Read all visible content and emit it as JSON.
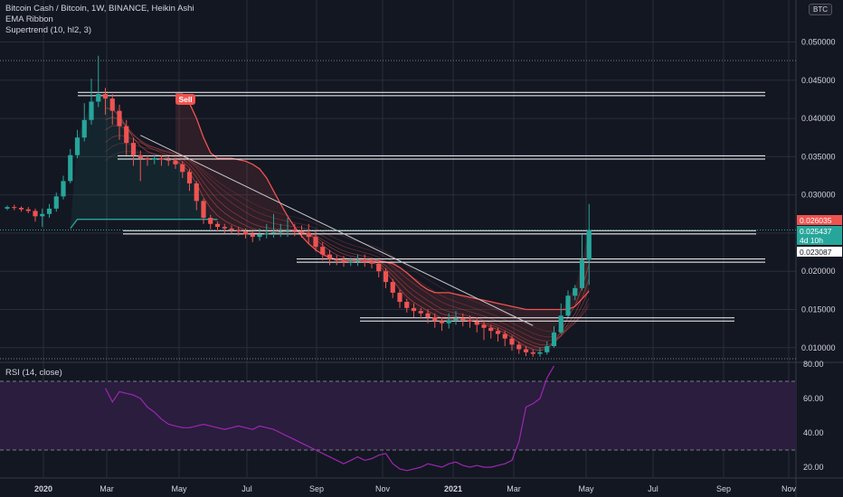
{
  "legend": {
    "title": "Bitcoin Cash / Bitcoin, 1W, BINANCE, Heikin Ashi",
    "indicator1": "EMA Ribbon",
    "indicator2": "Supertrend (10, hl2, 3)"
  },
  "currency_badge": "BTC",
  "rsi_label": "RSI (14, close)",
  "sell_label": "Sell",
  "colors": {
    "background": "#131722",
    "bull": "#26a69a",
    "bear": "#ef5350",
    "rsi_line": "#9c27b0",
    "rsi_band": "#2a1d3e",
    "axis_text": "#d1d4dc",
    "grid": "#2a2e39"
  },
  "chart_data": {
    "type": "candlestick",
    "price_axis": {
      "ticks": [
        0.01,
        0.015,
        0.02,
        0.025,
        0.03,
        0.035,
        0.04,
        0.045,
        0.05
      ],
      "tick_labels": [
        "0.010000",
        "0.015000",
        "0.020000",
        "0.025000",
        "0.030000",
        "0.035000",
        "0.040000",
        "0.045000",
        "0.050000"
      ],
      "range": [
        0.0082,
        0.0555
      ]
    },
    "time_axis": {
      "labels": [
        "2020",
        "Mar",
        "May",
        "Jul",
        "Sep",
        "Nov",
        "2021",
        "Mar",
        "May",
        "Jul",
        "Sep",
        "Nov"
      ]
    },
    "price_badges": [
      {
        "text": "0.026035",
        "value": 0.026035,
        "color": "#ef5350"
      },
      {
        "text": "0.025437",
        "value": 0.025437,
        "color": "#26a69a"
      },
      {
        "text": "4d 10h",
        "value": 0.024437,
        "color": "#26a69a"
      },
      {
        "text": "0.023087",
        "value": 0.023087,
        "color": "#ffffff"
      }
    ],
    "horizontal_levels": [
      0.0432,
      0.0349,
      0.0251,
      0.0214,
      0.0137
    ],
    "candles": [
      [
        0.0282,
        0.0284,
        0.0286,
        0.028
      ],
      [
        0.0284,
        0.0283,
        0.0287,
        0.028
      ],
      [
        0.0283,
        0.0281,
        0.0285,
        0.0278
      ],
      [
        0.0281,
        0.0279,
        0.0284,
        0.0276
      ],
      [
        0.0279,
        0.0272,
        0.0282,
        0.0265
      ],
      [
        0.0272,
        0.0275,
        0.0282,
        0.0258
      ],
      [
        0.0275,
        0.0282,
        0.0288,
        0.027
      ],
      [
        0.0282,
        0.0298,
        0.0303,
        0.0278
      ],
      [
        0.0298,
        0.0318,
        0.0325,
        0.0294
      ],
      [
        0.0318,
        0.0352,
        0.036,
        0.0315
      ],
      [
        0.0352,
        0.0375,
        0.0385,
        0.0348
      ],
      [
        0.0375,
        0.0398,
        0.042,
        0.037
      ],
      [
        0.0398,
        0.0422,
        0.0452,
        0.0392
      ],
      [
        0.0422,
        0.0432,
        0.0482,
        0.0415
      ],
      [
        0.0432,
        0.0426,
        0.044,
        0.0405
      ],
      [
        0.0426,
        0.041,
        0.0432,
        0.0392
      ],
      [
        0.041,
        0.039,
        0.0418,
        0.0372
      ],
      [
        0.039,
        0.0368,
        0.0398,
        0.0352
      ],
      [
        0.0368,
        0.0352,
        0.0375,
        0.0338
      ],
      [
        0.0352,
        0.0348,
        0.0358,
        0.0318
      ],
      [
        0.0348,
        0.0346,
        0.0352,
        0.0338
      ],
      [
        0.0346,
        0.0348,
        0.0352,
        0.034
      ],
      [
        0.0348,
        0.0346,
        0.0352,
        0.0338
      ],
      [
        0.0346,
        0.0345,
        0.035,
        0.0338
      ],
      [
        0.0345,
        0.034,
        0.0348,
        0.0334
      ],
      [
        0.034,
        0.033,
        0.0344,
        0.0322
      ],
      [
        0.033,
        0.0315,
        0.0334,
        0.0305
      ],
      [
        0.0315,
        0.0292,
        0.0318,
        0.028
      ],
      [
        0.0292,
        0.027,
        0.0295,
        0.0262
      ],
      [
        0.027,
        0.0262,
        0.0274,
        0.0255
      ],
      [
        0.0262,
        0.0258,
        0.0265,
        0.0252
      ],
      [
        0.0258,
        0.0256,
        0.0262,
        0.025
      ],
      [
        0.0256,
        0.0254,
        0.026,
        0.0249
      ],
      [
        0.0254,
        0.0252,
        0.0258,
        0.0247
      ],
      [
        0.0252,
        0.0248,
        0.0256,
        0.0243
      ],
      [
        0.0248,
        0.0245,
        0.0252,
        0.0238
      ],
      [
        0.0245,
        0.0248,
        0.0256,
        0.024
      ],
      [
        0.0248,
        0.025,
        0.0262,
        0.0243
      ],
      [
        0.025,
        0.0251,
        0.0275,
        0.0244
      ],
      [
        0.0251,
        0.0252,
        0.0262,
        0.0245
      ],
      [
        0.0252,
        0.0253,
        0.027,
        0.0245
      ],
      [
        0.0253,
        0.0252,
        0.0262,
        0.0246
      ],
      [
        0.0252,
        0.025,
        0.026,
        0.0244
      ],
      [
        0.025,
        0.0245,
        0.0262,
        0.0236
      ],
      [
        0.0245,
        0.0232,
        0.0252,
        0.0226
      ],
      [
        0.0232,
        0.0222,
        0.0238,
        0.0214
      ],
      [
        0.0222,
        0.0216,
        0.0228,
        0.0208
      ],
      [
        0.0216,
        0.0214,
        0.0221,
        0.0208
      ],
      [
        0.0214,
        0.0212,
        0.022,
        0.0206
      ],
      [
        0.0212,
        0.0213,
        0.0218,
        0.0207
      ],
      [
        0.0213,
        0.0214,
        0.0222,
        0.0207
      ],
      [
        0.0214,
        0.0212,
        0.0222,
        0.0206
      ],
      [
        0.0212,
        0.021,
        0.0218,
        0.0204
      ],
      [
        0.021,
        0.02,
        0.0214,
        0.0192
      ],
      [
        0.02,
        0.0186,
        0.0204,
        0.0178
      ],
      [
        0.0186,
        0.0172,
        0.019,
        0.0165
      ],
      [
        0.0172,
        0.016,
        0.0176,
        0.0152
      ],
      [
        0.016,
        0.0152,
        0.0164,
        0.0146
      ],
      [
        0.0152,
        0.0148,
        0.0158,
        0.014
      ],
      [
        0.0148,
        0.0145,
        0.0152,
        0.0138
      ],
      [
        0.0145,
        0.014,
        0.015,
        0.0132
      ],
      [
        0.014,
        0.0135,
        0.0145,
        0.0126
      ],
      [
        0.0135,
        0.0132,
        0.014,
        0.0122
      ],
      [
        0.0132,
        0.0136,
        0.0145,
        0.0125
      ],
      [
        0.0136,
        0.0138,
        0.0148,
        0.013
      ],
      [
        0.0138,
        0.0136,
        0.0145,
        0.0128
      ],
      [
        0.0136,
        0.0134,
        0.0142,
        0.0126
      ],
      [
        0.0134,
        0.013,
        0.014,
        0.012
      ],
      [
        0.013,
        0.0126,
        0.0135,
        0.011
      ],
      [
        0.0126,
        0.0122,
        0.013,
        0.0112
      ],
      [
        0.0122,
        0.0118,
        0.0126,
        0.0108
      ],
      [
        0.0118,
        0.0112,
        0.0122,
        0.0102
      ],
      [
        0.0112,
        0.0104,
        0.0116,
        0.0096
      ],
      [
        0.0104,
        0.0098,
        0.0108,
        0.0092
      ],
      [
        0.0098,
        0.0094,
        0.0102,
        0.0089
      ],
      [
        0.0094,
        0.0092,
        0.0098,
        0.0088
      ],
      [
        0.0092,
        0.0094,
        0.01,
        0.0088
      ],
      [
        0.0094,
        0.0102,
        0.0108,
        0.0091
      ],
      [
        0.0102,
        0.012,
        0.0128,
        0.01
      ],
      [
        0.012,
        0.0142,
        0.0158,
        0.0118
      ],
      [
        0.0142,
        0.0168,
        0.0175,
        0.014
      ],
      [
        0.0168,
        0.0178,
        0.0182,
        0.0162
      ],
      [
        0.0178,
        0.0215,
        0.0248,
        0.0175
      ],
      [
        0.0215,
        0.0254,
        0.0288,
        0.0182
      ]
    ],
    "supertrend": {
      "up_segment": [
        [
          9,
          0.0256
        ],
        [
          10,
          0.0268
        ],
        [
          30,
          0.0268
        ]
      ],
      "down_start_index": 24,
      "down": [
        0.0432,
        0.0432,
        0.042,
        0.04,
        0.0375,
        0.0355,
        0.0348,
        0.0348,
        0.0348,
        0.0346,
        0.0344,
        0.034,
        0.0334,
        0.0322,
        0.0305,
        0.0288,
        0.0272,
        0.0258,
        0.0246,
        0.0236,
        0.0228,
        0.0222,
        0.0218,
        0.0215,
        0.0214,
        0.0214,
        0.0214,
        0.0214,
        0.0214,
        0.0214,
        0.0212,
        0.021,
        0.0205,
        0.0198,
        0.019,
        0.0182,
        0.0176,
        0.0172,
        0.0172,
        0.0172,
        0.017,
        0.0168,
        0.0166,
        0.0164,
        0.0162,
        0.016,
        0.0158,
        0.0156,
        0.0154,
        0.0152,
        0.015,
        0.015,
        0.015,
        0.015,
        0.015,
        0.015,
        0.015,
        0.0154,
        0.0164,
        0.0174
      ]
    },
    "trendline": [
      [
        19,
        0.0378
      ],
      [
        75,
        0.0129
      ]
    ],
    "rsi": {
      "axis_ticks": [
        20.0,
        40.0,
        60.0,
        80.0
      ],
      "tick_labels": [
        "20.00",
        "40.00",
        "60.00",
        "80.00"
      ],
      "upper_band": 70,
      "lower_band": 30,
      "values": [
        66,
        58,
        64,
        63,
        62,
        60,
        55,
        52,
        48,
        45,
        44,
        43,
        43,
        44,
        45,
        44,
        43,
        42,
        43,
        44,
        43,
        42,
        44,
        43,
        42,
        40,
        38,
        36,
        34,
        32,
        30,
        28,
        26,
        24,
        22,
        24,
        26,
        24,
        25,
        27,
        28,
        22,
        19,
        18,
        19,
        20,
        22,
        21,
        20,
        22,
        23,
        21,
        20,
        21,
        20,
        20,
        21,
        22,
        24,
        35,
        55,
        57,
        60,
        72,
        79
      ],
      "start_index": 14
    }
  }
}
